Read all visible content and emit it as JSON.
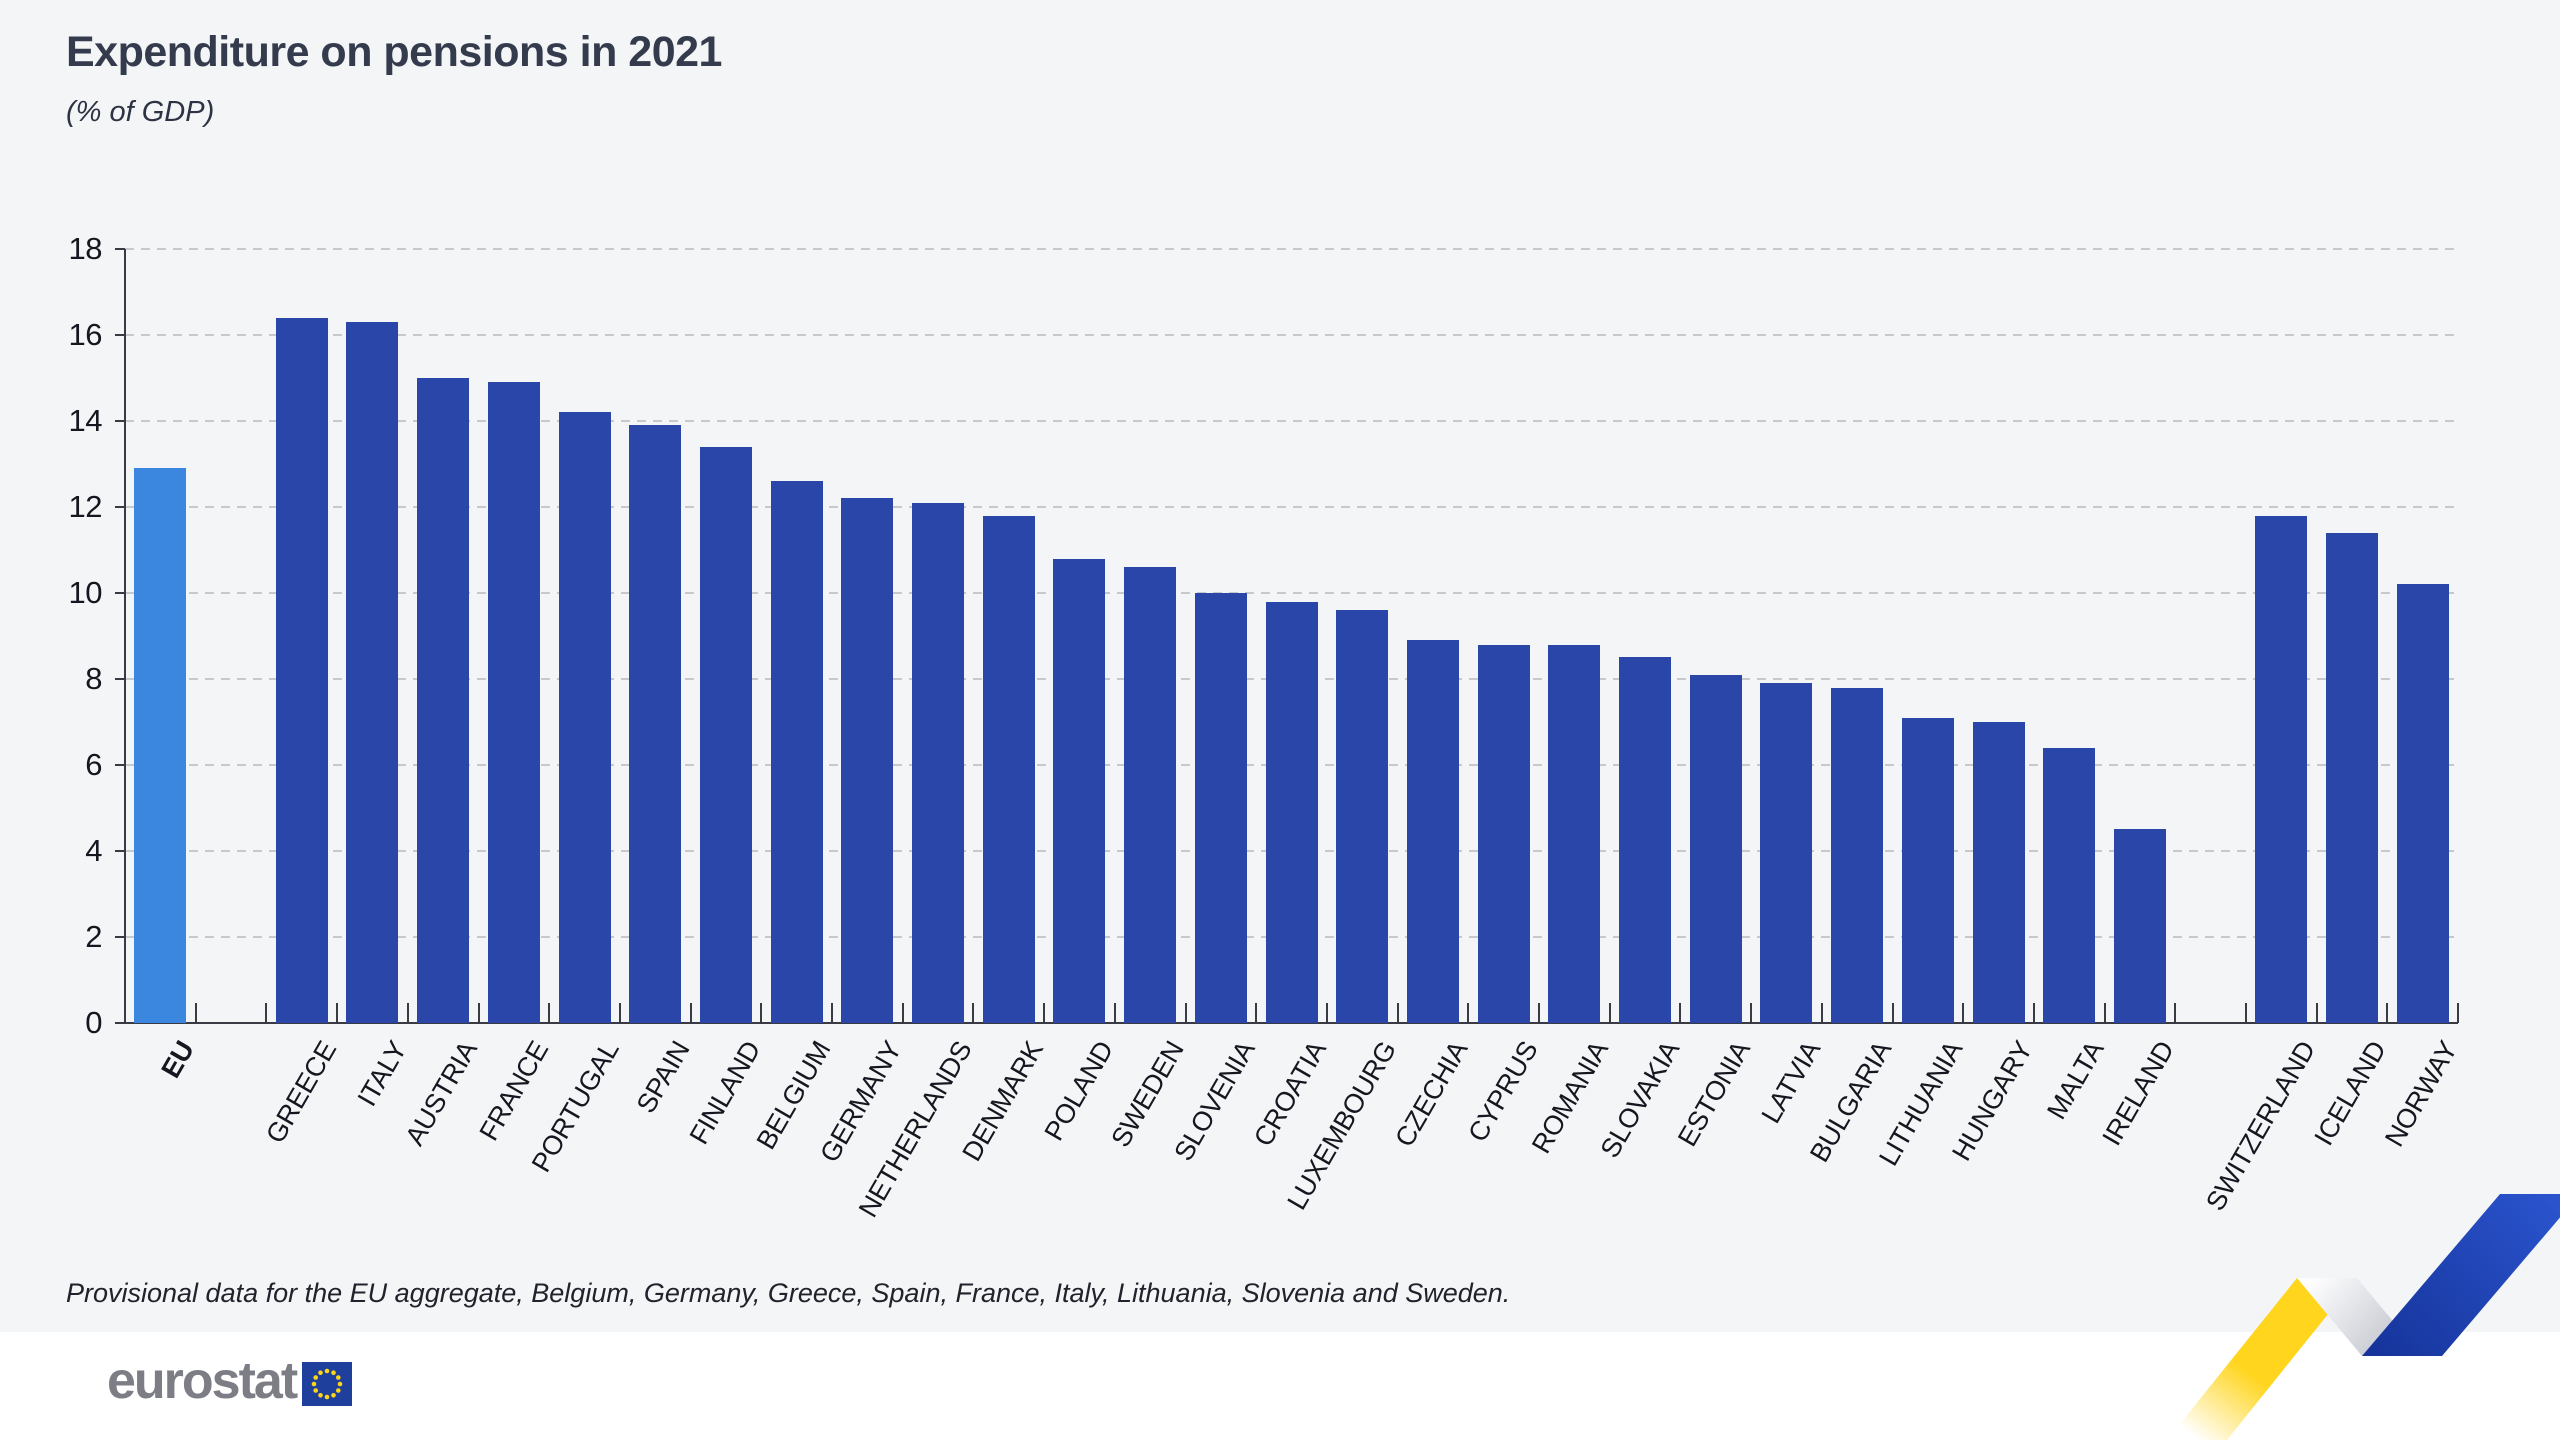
{
  "header": {
    "title": "Expenditure on pensions in 2021",
    "subtitle": "(% of GDP)"
  },
  "footnote": "Provisional data for the EU aggregate, Belgium, Germany, Greece, Spain, France, Italy, Lithuania, Slovenia and Sweden.",
  "branding": {
    "logo_text": "eurostat",
    "flag_icon": "eu-flag-icon",
    "flag_blue": "#1f3f9d",
    "star_yellow": "#ffd617"
  },
  "colors": {
    "background": "#f4f5f6",
    "bar_default": "#2a46a9",
    "bar_highlight": "#3b87e0",
    "axis": "#3a3a44",
    "gridline": "#c7c8cc",
    "text": "#15161f",
    "ribbon_yellow": "#ffd51e",
    "ribbon_blue": "#2450c4",
    "ribbon_gray": "#c3c7d0"
  },
  "chart_data": {
    "type": "bar",
    "title": "Expenditure on pensions in 2021",
    "subtitle": "(% of GDP)",
    "ylabel": "% of GDP",
    "xlabel": "",
    "ylim": [
      0,
      18
    ],
    "ytick_step": 2,
    "yticks": [
      0,
      2,
      4,
      6,
      8,
      10,
      12,
      14,
      16,
      18
    ],
    "grid": "dashed horizontal",
    "legend": "none",
    "categories": [
      "EU",
      "GREECE",
      "ITALY",
      "AUSTRIA",
      "FRANCE",
      "PORTUGAL",
      "SPAIN",
      "FINLAND",
      "BELGIUM",
      "GERMANY",
      "NETHERLANDS",
      "DENMARK",
      "POLAND",
      "SWEDEN",
      "SLOVENIA",
      "CROATIA",
      "LUXEMBOURG",
      "CZECHIA",
      "CYPRUS",
      "ROMANIA",
      "SLOVAKIA",
      "ESTONIA",
      "LATVIA",
      "BULGARIA",
      "LITHUANIA",
      "HUNGARY",
      "MALTA",
      "IRELAND",
      "SWITZERLAND",
      "ICELAND",
      "NORWAY"
    ],
    "bars": [
      {
        "label": "EU",
        "value": 12.9,
        "highlight": true,
        "bold_label": true
      },
      {
        "label": "GREECE",
        "value": 16.4,
        "gap_before": true
      },
      {
        "label": "ITALY",
        "value": 16.3
      },
      {
        "label": "AUSTRIA",
        "value": 15.0
      },
      {
        "label": "FRANCE",
        "value": 14.9
      },
      {
        "label": "PORTUGAL",
        "value": 14.2
      },
      {
        "label": "SPAIN",
        "value": 13.9
      },
      {
        "label": "FINLAND",
        "value": 13.4
      },
      {
        "label": "BELGIUM",
        "value": 12.6
      },
      {
        "label": "GERMANY",
        "value": 12.2
      },
      {
        "label": "NETHERLANDS",
        "value": 12.1
      },
      {
        "label": "DENMARK",
        "value": 11.8
      },
      {
        "label": "POLAND",
        "value": 10.8
      },
      {
        "label": "SWEDEN",
        "value": 10.6
      },
      {
        "label": "SLOVENIA",
        "value": 10.0
      },
      {
        "label": "CROATIA",
        "value": 9.8
      },
      {
        "label": "LUXEMBOURG",
        "value": 9.6
      },
      {
        "label": "CZECHIA",
        "value": 8.9
      },
      {
        "label": "CYPRUS",
        "value": 8.8
      },
      {
        "label": "ROMANIA",
        "value": 8.8
      },
      {
        "label": "SLOVAKIA",
        "value": 8.5
      },
      {
        "label": "ESTONIA",
        "value": 8.1
      },
      {
        "label": "LATVIA",
        "value": 7.9
      },
      {
        "label": "BULGARIA",
        "value": 7.8
      },
      {
        "label": "LITHUANIA",
        "value": 7.1
      },
      {
        "label": "HUNGARY",
        "value": 7.0
      },
      {
        "label": "MALTA",
        "value": 6.4
      },
      {
        "label": "IRELAND",
        "value": 4.5
      },
      {
        "label": "SWITZERLAND",
        "value": 11.8,
        "gap_before": true
      },
      {
        "label": "ICELAND",
        "value": 11.4
      },
      {
        "label": "NORWAY",
        "value": 10.2
      }
    ]
  }
}
